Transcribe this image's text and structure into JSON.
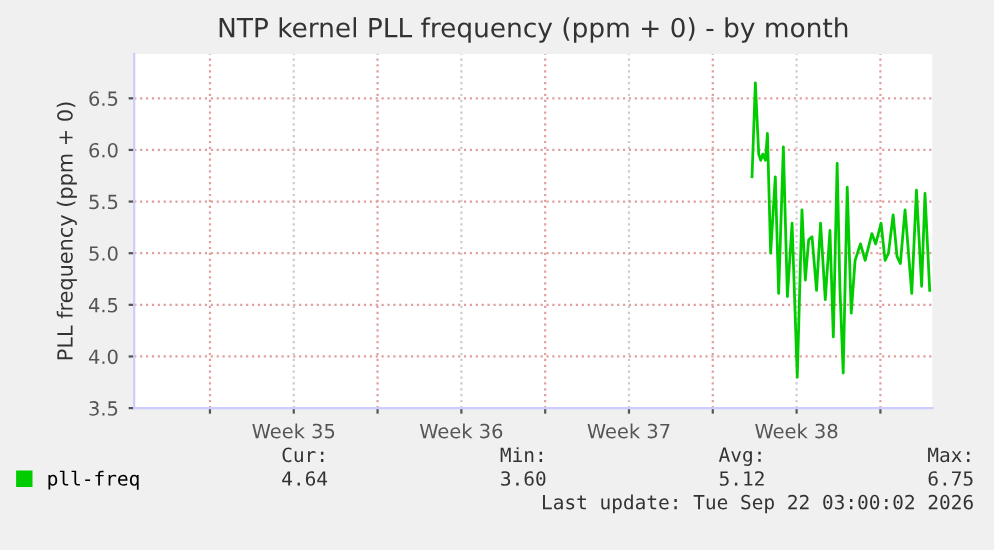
{
  "chart_data": {
    "type": "line",
    "title": "NTP kernel PLL frequency (ppm + 0) - by month",
    "ylabel": "PLL frequency (ppm + 0)",
    "x": [
      "2026-09-15T15:19",
      "2026-09-15T18:40",
      "2026-09-15T22:02",
      "2026-09-16T00:03",
      "2026-09-16T02:04",
      "2026-09-16T04:45",
      "2026-09-16T06:46",
      "2026-09-16T09:58",
      "2026-09-16T14:40",
      "2026-09-16T18:01",
      "2026-09-16T22:44",
      "2026-09-17T02:46",
      "2026-09-17T07:28",
      "2026-09-17T12:40",
      "2026-09-17T17:22",
      "2026-09-17T20:44",
      "2026-09-18T00:06",
      "2026-09-18T03:27",
      "2026-09-18T07:59",
      "2026-09-18T12:01",
      "2026-09-18T16:44",
      "2026-09-18T21:26",
      "2026-09-19T00:48",
      "2026-09-19T04:39",
      "2026-09-19T07:21",
      "2026-09-19T10:42",
      "2026-09-19T14:44",
      "2026-09-19T18:46",
      "2026-09-19T22:38",
      "2026-09-20T04:00",
      "2026-09-20T08:43",
      "2026-09-20T15:26",
      "2026-09-20T19:18",
      "2026-09-21T00:40",
      "2026-09-21T04:42",
      "2026-09-21T08:04",
      "2026-09-21T12:46",
      "2026-09-21T16:38",
      "2026-09-21T19:59",
      "2026-09-22T00:42",
      "2026-09-22T07:25",
      "2026-09-22T12:07",
      "2026-09-22T17:19",
      "2026-09-22T20:41",
      "2026-09-23T01:24"
    ],
    "series": [
      {
        "name": "pll-freq",
        "color": "#00cc00",
        "values": [
          5.74,
          6.65,
          5.96,
          5.9,
          5.96,
          5.9,
          6.16,
          5.0,
          5.74,
          4.61,
          6.03,
          4.58,
          5.29,
          3.8,
          5.42,
          4.74,
          5.13,
          5.16,
          4.64,
          5.29,
          4.55,
          5.22,
          4.19,
          5.87,
          4.68,
          3.84,
          5.64,
          4.42,
          4.93,
          5.09,
          4.93,
          5.19,
          5.09,
          5.29,
          4.93,
          5.0,
          5.37,
          4.97,
          4.9,
          5.42,
          4.61,
          5.61,
          4.68,
          5.58,
          4.64
        ]
      }
    ],
    "xlim": [
      "2026-08-20T20:04",
      "2026-09-23T04:05"
    ],
    "xticks": [
      {
        "value": "2026-08-24",
        "label": null
      },
      {
        "value": "2026-08-27T12:00",
        "label": "Week 35"
      },
      {
        "value": "2026-08-31",
        "label": null
      },
      {
        "value": "2026-09-03T12:00",
        "label": "Week 36"
      },
      {
        "value": "2026-09-07",
        "label": null
      },
      {
        "value": "2026-09-10T12:00",
        "label": "Week 37"
      },
      {
        "value": "2026-09-14",
        "label": null
      },
      {
        "value": "2026-09-17T12:00",
        "label": "Week 38"
      },
      {
        "value": "2026-09-21",
        "label": null
      }
    ],
    "ylim": [
      3.5,
      6.93
    ],
    "yticks": [
      {
        "value": 3.5,
        "label": "3.5"
      },
      {
        "value": 4,
        "label": "4.0"
      },
      {
        "value": 4.5,
        "label": "4.5"
      },
      {
        "value": 5,
        "label": "5.0"
      },
      {
        "value": 5.5,
        "label": "5.5"
      },
      {
        "value": 6,
        "label": "6.0"
      },
      {
        "value": 6.5,
        "label": "6.5"
      }
    ],
    "grid": true,
    "legend": "bottom left",
    "line_style": "solid",
    "marker": "none",
    "annotations": [
      "Cur:",
      "Min:",
      "Avg:",
      "Max:",
      "4.64",
      "3.60",
      "5.12",
      "6.75",
      "Last update: Tue Sep 22 03:00:02 2026"
    ]
  }
}
